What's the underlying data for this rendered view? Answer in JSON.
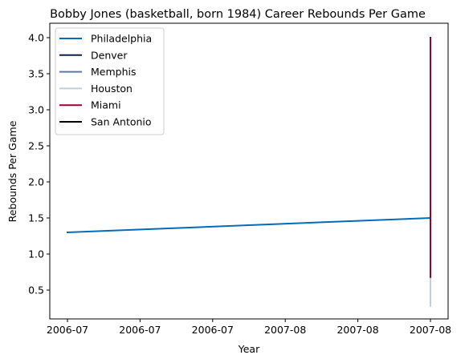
{
  "chart_data": {
    "type": "line",
    "title": "Bobby Jones (basketball, born 1984) Career Rebounds Per Game",
    "xlabel": "Year",
    "ylabel": "Rebounds Per Game",
    "x_tick_labels": [
      "2006-07",
      "2006-07",
      "2006-07",
      "2007-08",
      "2007-08",
      "2007-08"
    ],
    "x_range": [
      0,
      1
    ],
    "ylim": [
      0.1,
      4.2
    ],
    "y_ticks": [
      0.5,
      1.0,
      1.5,
      2.0,
      2.5,
      3.0,
      3.5,
      4.0
    ],
    "grid": false,
    "legend_position": "top-left",
    "series": [
      {
        "name": "Philadelphia",
        "color": "#006BB6",
        "points": [
          [
            0,
            1.3
          ],
          [
            1,
            1.5
          ]
        ]
      },
      {
        "name": "Denver",
        "color": "#0E2240",
        "points": []
      },
      {
        "name": "Memphis",
        "color": "#5D76A9",
        "points": []
      },
      {
        "name": "Houston",
        "color": "#C4CED4",
        "points": [
          [
            1,
            0.28
          ],
          [
            1,
            0.68
          ]
        ]
      },
      {
        "name": "Miami",
        "color": "#98002E",
        "points": [
          [
            1,
            0.68
          ],
          [
            1,
            4.0
          ]
        ]
      },
      {
        "name": "San Antonio",
        "color": "#000000",
        "points": []
      }
    ]
  }
}
